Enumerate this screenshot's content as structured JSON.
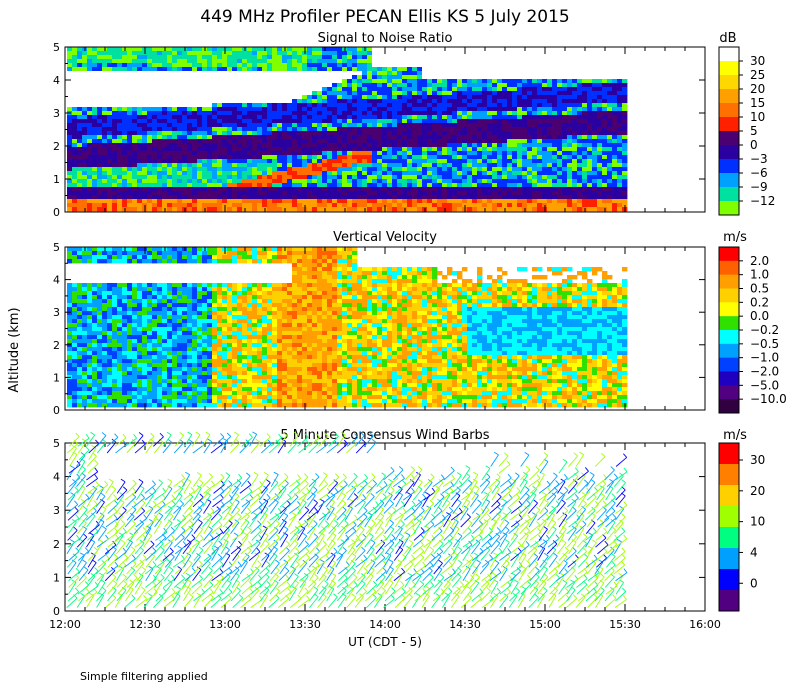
{
  "chart_data": {
    "type": "heatmap",
    "title": "449 MHz Profiler PECAN Ellis KS  5 July 2015",
    "ylabel": "Altitude (km)",
    "xlabel": "UT  (CDT - 5)",
    "x_ticks": [
      "12:00",
      "12:30",
      "13:00",
      "13:30",
      "14:00",
      "14:30",
      "15:00",
      "15:30",
      "16:00"
    ],
    "xlim_hours": [
      12,
      16
    ],
    "data_end_hour": 15.5,
    "footnote": "Simple filtering applied",
    "panels": [
      {
        "key": "snr",
        "title": "Signal to Noise Ratio",
        "unit": "dB",
        "ylim": [
          0,
          5
        ],
        "y_ticks": [
          "0",
          "1",
          "2",
          "3",
          "4",
          "5"
        ],
        "colorbar_labels": [
          "30",
          "25",
          "20",
          "15",
          "10",
          "5",
          "0",
          "−3",
          "−6",
          "−9",
          "−12"
        ],
        "colors": [
          "#ffffff",
          "#ffff00",
          "#ffd700",
          "#ffa000",
          "#ff7000",
          "#ff2000",
          "#4a0070",
          "#2a00a0",
          "#0030ff",
          "#00a0ff",
          "#00e0a0",
          "#80ff00"
        ]
      },
      {
        "key": "vv",
        "title": "Vertical Velocity",
        "unit": "m/s",
        "ylim": [
          0,
          5
        ],
        "y_ticks": [
          "0",
          "1",
          "2",
          "3",
          "4",
          "5"
        ],
        "colorbar_labels": [
          "2.0",
          "1.0",
          "0.5",
          "0.2",
          "0.0",
          "−0.2",
          "−0.5",
          "−1.0",
          "−2.0",
          "−5.0",
          "−10.0"
        ],
        "colors": [
          "#ff0000",
          "#ff6000",
          "#ffa000",
          "#ffd000",
          "#ffff00",
          "#30e000",
          "#00ffff",
          "#00a0ff",
          "#0040ff",
          "#2000c0",
          "#500080",
          "#300040"
        ]
      },
      {
        "key": "wind",
        "title": "5 Minute Consensus Wind Barbs",
        "unit": "m/s",
        "ylim": [
          0,
          5
        ],
        "y_ticks": [
          "0",
          "1",
          "2",
          "3",
          "4",
          "5"
        ],
        "colorbar_labels": [
          "30",
          "20",
          "10",
          "4",
          "0"
        ],
        "colors": [
          "#ff0000",
          "#ff8000",
          "#ffd000",
          "#a0ff00",
          "#00ff80",
          "#00a0ff",
          "#0000ff",
          "#500080"
        ]
      }
    ]
  }
}
